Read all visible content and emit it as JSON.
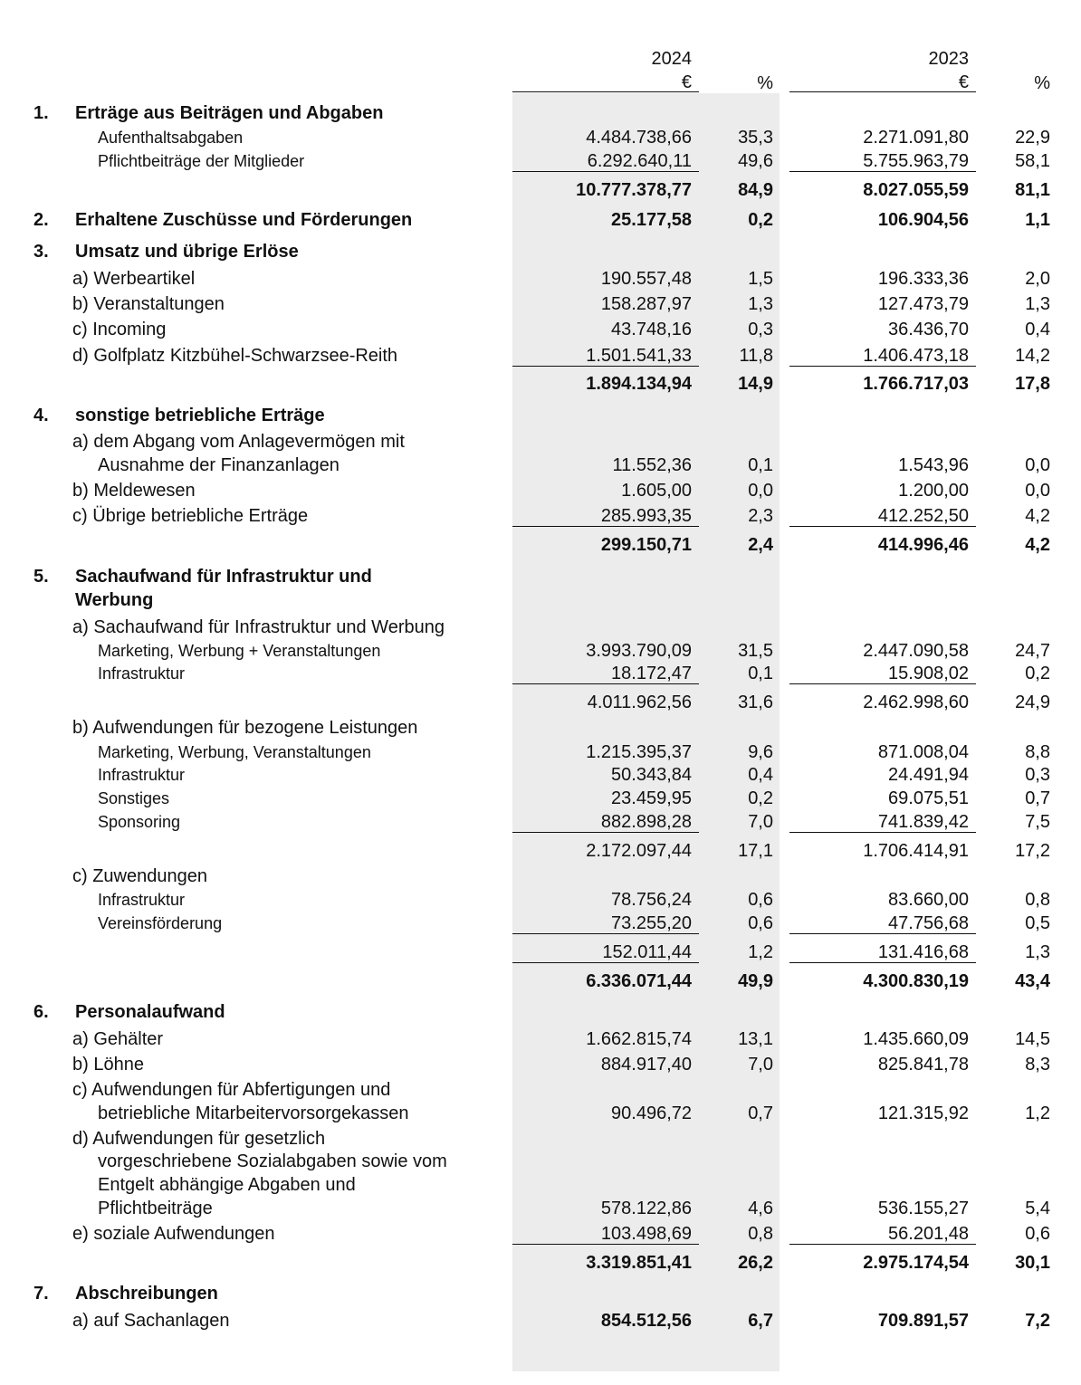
{
  "header": {
    "year_2024": "2024",
    "year_2023": "2023",
    "currency_2024": "€",
    "currency_2023": "€",
    "percent_2024": "%",
    "percent_2023": "%"
  },
  "rows": [
    {
      "no": "1.",
      "label": "Erträge aus Beiträgen und Abgaben",
      "kind": "head",
      "bold": true
    },
    {
      "label": "Aufenthaltsabgaben",
      "kind": "ind",
      "v24": "4.484.738,66",
      "p24": "35,3",
      "v23": "2.271.091,80",
      "p23": "22,9"
    },
    {
      "label": "Pflichtbeiträge der Mitglieder",
      "kind": "ind",
      "v24": "6.292.640,11",
      "p24": "49,6",
      "v23": "5.755.963,79",
      "p23": "58,1"
    },
    {
      "kind": "total",
      "bold": true,
      "v24": "10.777.378,77",
      "p24": "84,9",
      "v23": "8.027.055,59",
      "p23": "81,1"
    },
    {
      "no": "2.",
      "label": "Erhaltene Zuschüsse und Förderungen",
      "kind": "head",
      "bold": true,
      "v24": "25.177,58",
      "p24": "0,2",
      "v23": "106.904,56",
      "p23": "1,1"
    },
    {
      "no": "3.",
      "label": "Umsatz und übrige Erlöse",
      "kind": "head",
      "bold": true
    },
    {
      "label": "a) Werbeartikel",
      "kind": "sub",
      "v24": "190.557,48",
      "p24": "1,5",
      "v23": "196.333,36",
      "p23": "2,0"
    },
    {
      "label": "b) Veranstaltungen",
      "kind": "sub",
      "v24": "158.287,97",
      "p24": "1,3",
      "v23": "127.473,79",
      "p23": "1,3"
    },
    {
      "label": "c) Incoming",
      "kind": "sub",
      "v24": "43.748,16",
      "p24": "0,3",
      "v23": "36.436,70",
      "p23": "0,4"
    },
    {
      "label": "d) Golfplatz Kitzbühel-Schwarzsee-Reith",
      "kind": "sub",
      "v24": "1.501.541,33",
      "p24": "11,8",
      "v23": "1.406.473,18",
      "p23": "14,2"
    },
    {
      "kind": "total",
      "bold": true,
      "v24": "1.894.134,94",
      "p24": "14,9",
      "v23": "1.766.717,03",
      "p23": "17,8"
    },
    {
      "no": "4.",
      "label": "sonstige betriebliche Erträge",
      "kind": "head",
      "bold": true
    },
    {
      "label": "a) dem Abgang vom Anlagevermögen mit",
      "kind": "sub"
    },
    {
      "label": "Ausnahme der Finanzanlagen",
      "kind": "ind20",
      "v24": "11.552,36",
      "p24": "0,1",
      "v23": "1.543,96",
      "p23": "0,0"
    },
    {
      "label": "b) Meldewesen",
      "kind": "sub",
      "v24": "1.605,00",
      "p24": "0,0",
      "v23": "1.200,00",
      "p23": "0,0"
    },
    {
      "label": "c) Übrige betriebliche Erträge",
      "kind": "sub",
      "v24": "285.993,35",
      "p24": "2,3",
      "v23": "412.252,50",
      "p23": "4,2"
    },
    {
      "kind": "total",
      "bold": true,
      "v24": "299.150,71",
      "p24": "2,4",
      "v23": "414.996,46",
      "p23": "4,2"
    },
    {
      "no": "5.",
      "label": "Sachaufwand für Infrastruktur und",
      "kind": "head",
      "bold": true
    },
    {
      "label": "Werbung",
      "kind": "head",
      "bold": true
    },
    {
      "label": "a) Sachaufwand für Infrastruktur und Werbung",
      "kind": "sub"
    },
    {
      "label": "Marketing, Werbung + Veranstaltungen",
      "kind": "ind",
      "v24": "3.993.790,09",
      "p24": "31,5",
      "v23": "2.447.090,58",
      "p23": "24,7"
    },
    {
      "label": "Infrastruktur",
      "kind": "ind",
      "v24": "18.172,47",
      "p24": "0,1",
      "v23": "15.908,02",
      "p23": "0,2"
    },
    {
      "kind": "total",
      "v24": "4.011.962,56",
      "p24": "31,6",
      "v23": "2.462.998,60",
      "p23": "24,9"
    },
    {
      "label": "b) Aufwendungen für bezogene Leistungen",
      "kind": "sub"
    },
    {
      "label": "Marketing, Werbung, Veranstaltungen",
      "kind": "ind",
      "v24": "1.215.395,37",
      "p24": "9,6",
      "v23": "871.008,04",
      "p23": "8,8"
    },
    {
      "label": "Infrastruktur",
      "kind": "ind",
      "v24": "50.343,84",
      "p24": "0,4",
      "v23": "24.491,94",
      "p23": "0,3"
    },
    {
      "label": "Sonstiges",
      "kind": "ind",
      "v24": "23.459,95",
      "p24": "0,2",
      "v23": "69.075,51",
      "p23": "0,7"
    },
    {
      "label": "Sponsoring",
      "kind": "ind",
      "v24": "882.898,28",
      "p24": "7,0",
      "v23": "741.839,42",
      "p23": "7,5"
    },
    {
      "kind": "total",
      "v24": "2.172.097,44",
      "p24": "17,1",
      "v23": "1.706.414,91",
      "p23": "17,2"
    },
    {
      "label": "c) Zuwendungen",
      "kind": "sub"
    },
    {
      "label": "Infrastruktur",
      "kind": "ind",
      "v24": "78.756,24",
      "p24": "0,6",
      "v23": "83.660,00",
      "p23": "0,8"
    },
    {
      "label": "Vereinsförderung",
      "kind": "ind",
      "v24": "73.255,20",
      "p24": "0,6",
      "v23": "47.756,68",
      "p23": "0,5"
    },
    {
      "kind": "total",
      "v24": "152.011,44",
      "p24": "1,2",
      "v23": "131.416,68",
      "p23": "1,3"
    },
    {
      "kind": "total",
      "bold": true,
      "v24": "6.336.071,44",
      "p24": "49,9",
      "v23": "4.300.830,19",
      "p23": "43,4"
    },
    {
      "no": "6.",
      "label": "Personalaufwand",
      "kind": "head",
      "bold": true
    },
    {
      "label": "a) Gehälter",
      "kind": "sub",
      "v24": "1.662.815,74",
      "p24": "13,1",
      "v23": "1.435.660,09",
      "p23": "14,5"
    },
    {
      "label": "b) Löhne",
      "kind": "sub",
      "v24": "884.917,40",
      "p24": "7,0",
      "v23": "825.841,78",
      "p23": "8,3"
    },
    {
      "label": "c) Aufwendungen für Abfertigungen und",
      "kind": "sub"
    },
    {
      "label": "betriebliche Mitarbeitervorsorgekassen",
      "kind": "ind20",
      "v24": "90.496,72",
      "p24": "0,7",
      "v23": "121.315,92",
      "p23": "1,2"
    },
    {
      "label": "d) Aufwendungen für gesetzlich",
      "kind": "sub"
    },
    {
      "label": "vorgeschriebene Sozialabgaben sowie vom",
      "kind": "ind20"
    },
    {
      "label": "Entgelt abhängige Abgaben und",
      "kind": "ind20"
    },
    {
      "label": "Pflichtbeiträge",
      "kind": "ind20",
      "v24": "578.122,86",
      "p24": "4,6",
      "v23": "536.155,27",
      "p23": "5,4"
    },
    {
      "label": "e) soziale Aufwendungen",
      "kind": "sub",
      "v24": "103.498,69",
      "p24": "0,8",
      "v23": "56.201,48",
      "p23": "0,6"
    },
    {
      "kind": "total",
      "bold": true,
      "v24": "3.319.851,41",
      "p24": "26,2",
      "v23": "2.975.174,54",
      "p23": "30,1"
    },
    {
      "no": "7.",
      "label": "Abschreibungen",
      "kind": "head",
      "bold": true
    },
    {
      "label": "a) auf Sachanlagen",
      "kind": "sub",
      "bold_values": true,
      "v24": "854.512,56",
      "p24": "6,7",
      "v23": "709.891,57",
      "p23": "7,2"
    }
  ]
}
